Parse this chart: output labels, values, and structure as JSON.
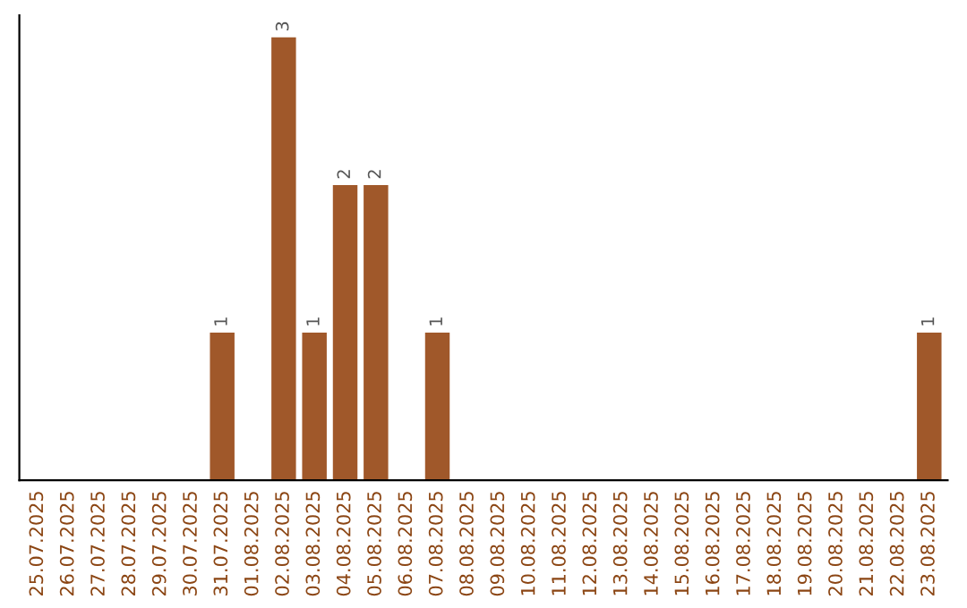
{
  "chart_data": {
    "type": "bar",
    "categories": [
      "25.07.2025",
      "26.07.2025",
      "27.07.2025",
      "28.07.2025",
      "29.07.2025",
      "30.07.2025",
      "31.07.2025",
      "01.08.2025",
      "02.08.2025",
      "03.08.2025",
      "04.08.2025",
      "05.08.2025",
      "06.08.2025",
      "07.08.2025",
      "08.08.2025",
      "09.08.2025",
      "10.08.2025",
      "11.08.2025",
      "12.08.2025",
      "13.08.2025",
      "14.08.2025",
      "15.08.2025",
      "16.08.2025",
      "17.08.2025",
      "18.08.2025",
      "19.08.2025",
      "20.08.2025",
      "21.08.2025",
      "22.08.2025",
      "23.08.2025"
    ],
    "values": [
      0,
      0,
      0,
      0,
      0,
      0,
      1,
      0,
      3,
      1,
      2,
      2,
      0,
      1,
      0,
      0,
      0,
      0,
      0,
      0,
      0,
      0,
      0,
      0,
      0,
      0,
      0,
      0,
      0,
      1
    ],
    "color": "#a0582a",
    "value_labels": [
      null,
      null,
      null,
      null,
      null,
      null,
      "1",
      null,
      "3",
      "1",
      "2",
      "2",
      null,
      "1",
      null,
      null,
      null,
      null,
      null,
      null,
      null,
      null,
      null,
      null,
      null,
      null,
      null,
      null,
      null,
      "1"
    ],
    "tick_labels": "x",
    "grid": false
  }
}
